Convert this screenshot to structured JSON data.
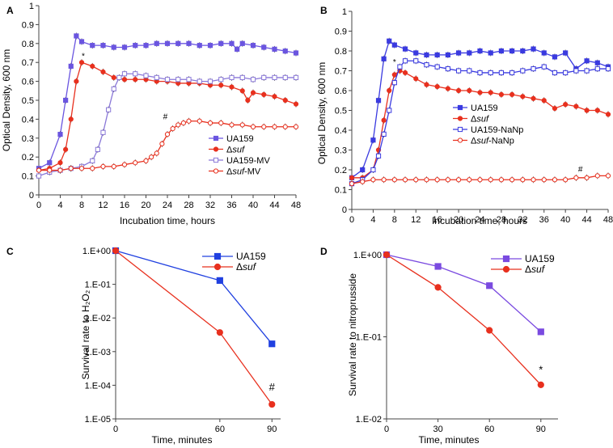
{
  "panels": [
    {
      "label": "A",
      "type": "line",
      "title": "",
      "xlabel": "Incubation time, hours",
      "ylabel": "Optical Density, 600 nm",
      "xlim": [
        0,
        48
      ],
      "ylim": [
        0,
        1
      ],
      "xticks": [
        0,
        4,
        8,
        12,
        16,
        20,
        24,
        28,
        32,
        36,
        40,
        44,
        48
      ],
      "yticks": [
        0,
        0.1,
        0.2,
        0.3,
        0.4,
        0.5,
        0.6,
        0.7,
        0.8,
        0.9,
        1
      ],
      "ytick_labels": [
        "0",
        "0.1",
        "0.2",
        "0.3",
        "0.4",
        "0.5",
        "0.6",
        "0.7",
        "0.8",
        "0.9",
        "1"
      ],
      "series": [
        {
          "name": "UA159",
          "prefix": "UA159",
          "suffix": "",
          "color": "#6a55e0",
          "marker": "square",
          "filled": true,
          "x": [
            0,
            2,
            4,
            5,
            6,
            7,
            8,
            10,
            12,
            14,
            16,
            18,
            20,
            22,
            24,
            26,
            28,
            30,
            32,
            34,
            36,
            37,
            38,
            40,
            42,
            44,
            46,
            48
          ],
          "y": [
            0.14,
            0.17,
            0.32,
            0.5,
            0.68,
            0.84,
            0.81,
            0.79,
            0.79,
            0.78,
            0.78,
            0.79,
            0.79,
            0.8,
            0.8,
            0.8,
            0.8,
            0.79,
            0.79,
            0.8,
            0.8,
            0.77,
            0.8,
            0.79,
            0.78,
            0.77,
            0.76,
            0.75
          ]
        },
        {
          "name": "Δsuf",
          "prefix": "Δ",
          "suffix": "suf",
          "color": "#e8301e",
          "marker": "circle",
          "filled": true,
          "x": [
            0,
            2,
            4,
            5,
            6,
            7,
            8,
            10,
            12,
            14,
            16,
            18,
            20,
            22,
            24,
            26,
            28,
            30,
            32,
            34,
            36,
            38,
            39,
            40,
            42,
            44,
            46,
            48
          ],
          "y": [
            0.13,
            0.14,
            0.17,
            0.24,
            0.4,
            0.6,
            0.7,
            0.68,
            0.65,
            0.62,
            0.61,
            0.61,
            0.61,
            0.6,
            0.6,
            0.59,
            0.59,
            0.59,
            0.58,
            0.58,
            0.57,
            0.55,
            0.5,
            0.54,
            0.53,
            0.52,
            0.5,
            0.48
          ]
        },
        {
          "name": "UA159-MV",
          "prefix": "UA159-MV",
          "suffix": "",
          "color": "#8a78d8",
          "marker": "square",
          "filled": false,
          "x": [
            0,
            2,
            4,
            6,
            8,
            10,
            11,
            12,
            13,
            14,
            15,
            16,
            18,
            20,
            22,
            24,
            26,
            28,
            30,
            32,
            34,
            36,
            38,
            40,
            42,
            44,
            46,
            48
          ],
          "y": [
            0.1,
            0.12,
            0.13,
            0.14,
            0.15,
            0.18,
            0.24,
            0.33,
            0.45,
            0.56,
            0.62,
            0.64,
            0.64,
            0.63,
            0.62,
            0.61,
            0.61,
            0.61,
            0.6,
            0.6,
            0.61,
            0.62,
            0.62,
            0.61,
            0.62,
            0.62,
            0.62,
            0.62
          ]
        },
        {
          "name": "Δsuf-MV",
          "prefix": "Δ",
          "suffix": "suf-MV",
          "color": "#e8301e",
          "marker": "circle",
          "filled": false,
          "x": [
            0,
            2,
            4,
            6,
            8,
            10,
            12,
            14,
            16,
            18,
            20,
            21,
            22,
            23,
            24,
            25,
            26,
            27,
            28,
            30,
            32,
            34,
            36,
            38,
            40,
            42,
            44,
            46,
            48
          ],
          "y": [
            0.13,
            0.13,
            0.13,
            0.14,
            0.14,
            0.14,
            0.15,
            0.15,
            0.16,
            0.17,
            0.18,
            0.2,
            0.22,
            0.27,
            0.32,
            0.35,
            0.37,
            0.38,
            0.39,
            0.39,
            0.38,
            0.38,
            0.37,
            0.37,
            0.36,
            0.36,
            0.36,
            0.36,
            0.36
          ]
        }
      ],
      "annotations": [
        {
          "text": "*",
          "x": 8.3,
          "y": 0.72
        },
        {
          "text": "#",
          "x": 23.6,
          "y": 0.4
        }
      ]
    },
    {
      "label": "B",
      "type": "line",
      "title": "",
      "xlabel": "Incubation time, hours",
      "ylabel": "Optical Density, 600 nm",
      "xlim": [
        0,
        48
      ],
      "ylim": [
        0,
        1
      ],
      "xticks": [
        0,
        4,
        8,
        12,
        16,
        20,
        24,
        28,
        32,
        36,
        40,
        44,
        48
      ],
      "yticks": [
        0,
        0.1,
        0.2,
        0.3,
        0.4,
        0.5,
        0.6,
        0.7,
        0.8,
        0.9,
        1
      ],
      "ytick_labels": [
        "0",
        "0.1",
        "0.2",
        "0.3",
        "0.4",
        "0.5",
        "0.6",
        "0.7",
        "0.8",
        "0.9",
        "1"
      ],
      "series": [
        {
          "name": "UA159",
          "prefix": "UA159",
          "suffix": "",
          "color": "#3a3ae0",
          "marker": "square",
          "filled": true,
          "x": [
            0,
            2,
            4,
            5,
            6,
            7,
            8,
            10,
            12,
            14,
            16,
            18,
            20,
            22,
            24,
            26,
            28,
            30,
            32,
            34,
            36,
            38,
            40,
            42,
            44,
            46,
            48
          ],
          "y": [
            0.16,
            0.2,
            0.35,
            0.55,
            0.76,
            0.85,
            0.83,
            0.81,
            0.79,
            0.78,
            0.78,
            0.78,
            0.79,
            0.79,
            0.8,
            0.79,
            0.8,
            0.8,
            0.8,
            0.81,
            0.79,
            0.77,
            0.79,
            0.71,
            0.75,
            0.74,
            0.72
          ]
        },
        {
          "name": "Δsuf",
          "prefix": "Δ",
          "suffix": "suf",
          "color": "#e8301e",
          "marker": "circle",
          "filled": true,
          "x": [
            0,
            2,
            4,
            5,
            6,
            7,
            8,
            9,
            10,
            12,
            14,
            16,
            18,
            20,
            22,
            24,
            26,
            28,
            30,
            32,
            34,
            36,
            38,
            40,
            42,
            44,
            46,
            48
          ],
          "y": [
            0.16,
            0.16,
            0.2,
            0.3,
            0.45,
            0.6,
            0.68,
            0.7,
            0.69,
            0.66,
            0.63,
            0.62,
            0.61,
            0.6,
            0.6,
            0.59,
            0.59,
            0.58,
            0.58,
            0.57,
            0.56,
            0.55,
            0.51,
            0.53,
            0.52,
            0.5,
            0.5,
            0.48
          ]
        },
        {
          "name": "UA159-NaNp",
          "prefix": "UA159-NaNp",
          "suffix": "",
          "color": "#3a3ae0",
          "marker": "square",
          "filled": false,
          "x": [
            0,
            2,
            4,
            5,
            6,
            7,
            8,
            9,
            10,
            12,
            14,
            16,
            18,
            20,
            22,
            24,
            26,
            28,
            30,
            32,
            34,
            36,
            38,
            40,
            42,
            44,
            46,
            48
          ],
          "y": [
            0.13,
            0.15,
            0.2,
            0.27,
            0.38,
            0.5,
            0.64,
            0.72,
            0.75,
            0.75,
            0.73,
            0.72,
            0.71,
            0.7,
            0.7,
            0.69,
            0.69,
            0.69,
            0.69,
            0.7,
            0.71,
            0.72,
            0.69,
            0.69,
            0.7,
            0.7,
            0.71,
            0.71
          ]
        },
        {
          "name": "Δsuf-NaNp",
          "prefix": "Δ",
          "suffix": "suf-NaNp",
          "color": "#e8301e",
          "marker": "circle",
          "filled": false,
          "x": [
            0,
            2,
            4,
            6,
            8,
            10,
            12,
            14,
            16,
            18,
            20,
            22,
            24,
            26,
            28,
            30,
            32,
            34,
            36,
            38,
            40,
            42,
            44,
            46,
            48
          ],
          "y": [
            0.13,
            0.14,
            0.15,
            0.15,
            0.15,
            0.15,
            0.15,
            0.15,
            0.15,
            0.15,
            0.15,
            0.15,
            0.15,
            0.15,
            0.15,
            0.15,
            0.15,
            0.15,
            0.15,
            0.15,
            0.15,
            0.16,
            0.16,
            0.17,
            0.17
          ]
        }
      ],
      "annotations": [
        {
          "text": "*",
          "x": 8.0,
          "y": 0.73
        },
        {
          "text": "#",
          "x": 42.8,
          "y": 0.19
        }
      ]
    },
    {
      "label": "C",
      "type": "line",
      "title": "",
      "xlabel": "Time, minutes",
      "ylabel": "Survival rate to H₂O₂",
      "yscale": "log",
      "xlim": [
        0,
        95
      ],
      "ylim": [
        1e-05,
        1
      ],
      "xticks": [
        0,
        60,
        90
      ],
      "yticks": [
        1,
        0.1,
        0.01,
        0.001,
        0.0001,
        1e-05
      ],
      "ytick_labels": [
        "1.E+00",
        "1.E-01",
        "1.E-02",
        "1.E-03",
        "1.E-04",
        "1.E-05"
      ],
      "series": [
        {
          "name": "UA159",
          "prefix": "UA159",
          "suffix": "",
          "color": "#2040e0",
          "marker": "square",
          "filled": true,
          "x": [
            0,
            60,
            90
          ],
          "y": [
            1,
            0.13,
            0.0017
          ]
        },
        {
          "name": "Δsuf",
          "prefix": "Δ",
          "suffix": "suf",
          "color": "#e8301e",
          "marker": "circle",
          "filled": true,
          "x": [
            0,
            60,
            90
          ],
          "y": [
            1,
            0.0037,
            2.7e-05
          ]
        }
      ],
      "annotations": [
        {
          "text": "#",
          "x": 90,
          "y": 7e-05
        }
      ]
    },
    {
      "label": "D",
      "type": "line",
      "title": "",
      "xlabel": "Time, minutes",
      "ylabel": "Survival rate to nitroprusside",
      "yscale": "log",
      "xlim": [
        0,
        100
      ],
      "ylim": [
        0.01,
        1
      ],
      "xticks": [
        0,
        30,
        60,
        90
      ],
      "yticks": [
        1,
        0.1,
        0.01
      ],
      "ytick_labels": [
        "1.E+00",
        "1.E-01",
        "1.E-02"
      ],
      "series": [
        {
          "name": "UA159",
          "prefix": "UA159",
          "suffix": "",
          "color": "#7a4ae0",
          "marker": "square",
          "filled": true,
          "x": [
            0,
            30,
            60,
            90
          ],
          "y": [
            1,
            0.72,
            0.42,
            0.115
          ]
        },
        {
          "name": "Δsuf",
          "prefix": "Δ",
          "suffix": "suf",
          "color": "#e8301e",
          "marker": "circle",
          "filled": true,
          "x": [
            0,
            30,
            60,
            90
          ],
          "y": [
            1,
            0.4,
            0.12,
            0.026
          ]
        }
      ],
      "annotations": [
        {
          "text": "*",
          "x": 90,
          "y": 0.036
        }
      ]
    }
  ]
}
